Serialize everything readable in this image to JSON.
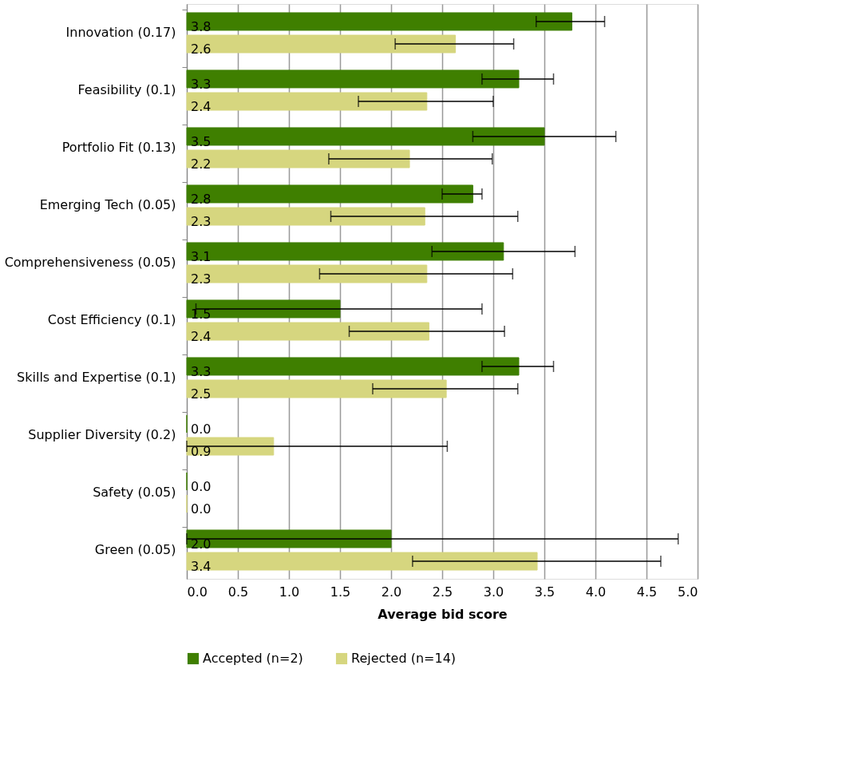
{
  "chart_data": {
    "type": "bar",
    "orientation": "horizontal",
    "xlabel": "Average bid score",
    "categories": [
      "Innovation  (0.17)",
      "Feasibility  (0.1)",
      "Portfolio Fit  (0.13)",
      "Emerging Tech (0.05)",
      "Comprehensiveness (0.05)",
      "Cost Efficiency (0.1)",
      "Skills and Expertise  (0.1)",
      "Supplier Diversity  (0.2)",
      "Safety  (0.05)",
      "Green  (0.05)"
    ],
    "series": [
      {
        "name": "Accepted (n=2)",
        "color": "#3f7f00",
        "values": [
          3.77,
          3.25,
          3.5,
          2.8,
          3.1,
          1.5,
          3.25,
          0,
          0,
          2.0
        ],
        "value_labels": [
          "3.8",
          "3.3",
          "3.5",
          "2.8",
          "3.1",
          "1.5",
          "3.3",
          "0.0",
          "0.0",
          "2.0"
        ],
        "errors": [
          [
            3.42,
            4.09
          ],
          [
            2.89,
            3.59
          ],
          [
            2.8,
            4.2
          ],
          [
            2.5,
            2.89
          ],
          [
            2.4,
            3.8
          ],
          [
            0.09,
            2.89
          ],
          [
            2.89,
            3.59
          ],
          null,
          null,
          [
            0,
            4.81
          ]
        ]
      },
      {
        "name": "Rejected (n=14)",
        "color": "#d6d67f",
        "values": [
          2.63,
          2.35,
          2.18,
          2.33,
          2.35,
          2.37,
          2.54,
          0.85,
          0,
          3.43
        ],
        "value_labels": [
          "2.6",
          "2.4",
          "2.2",
          "2.3",
          "2.3",
          "2.4",
          "2.5",
          "0.9",
          "0.0",
          "3.4"
        ],
        "errors": [
          [
            2.04,
            3.2
          ],
          [
            1.68,
            3.0
          ],
          [
            1.39,
            2.99
          ],
          [
            1.41,
            3.24
          ],
          [
            1.3,
            3.19
          ],
          [
            1.59,
            3.11
          ],
          [
            1.82,
            3.24
          ],
          [
            0,
            2.55
          ],
          null,
          [
            2.21,
            4.64
          ]
        ]
      }
    ],
    "xlim": [
      0,
      5
    ],
    "xticks": [
      {
        "value": 0,
        "label": "0.0"
      },
      {
        "value": 0.5,
        "label": "0.5"
      },
      {
        "value": 1,
        "label": "1.0"
      },
      {
        "value": 1.5,
        "label": "1.5"
      },
      {
        "value": 2,
        "label": "2.0"
      },
      {
        "value": 2.5,
        "label": "2.5"
      },
      {
        "value": 3,
        "label": "3.0"
      },
      {
        "value": 3.5,
        "label": "3.5"
      },
      {
        "value": 4,
        "label": "4.0"
      },
      {
        "value": 4.5,
        "label": "4.5"
      },
      {
        "value": 5,
        "label": "5.0"
      }
    ],
    "grid": "x",
    "legend": "bottom"
  }
}
